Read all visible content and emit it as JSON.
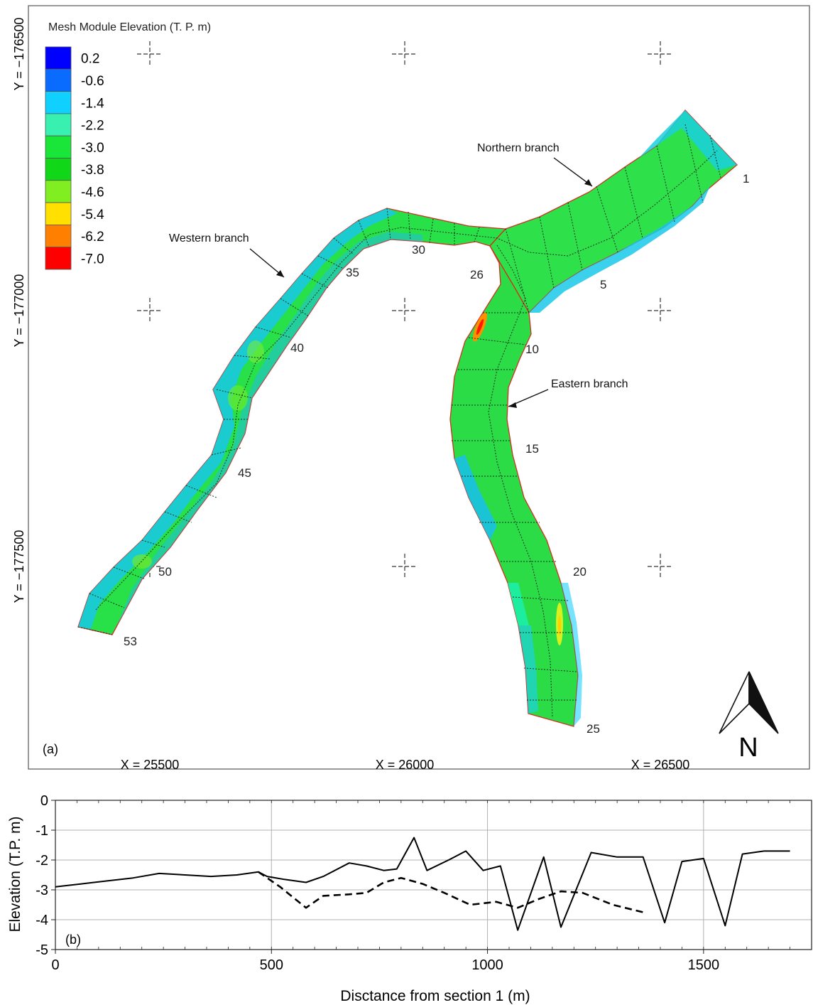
{
  "legend": {
    "title": "Mesh Module Elevation (T. P. m)",
    "items": [
      {
        "label": "0.2",
        "color": "#0000ff"
      },
      {
        "label": "-0.6",
        "color": "#0a6cff"
      },
      {
        "label": "-1.4",
        "color": "#10d0ff"
      },
      {
        "label": "-2.2",
        "color": "#38f0b0"
      },
      {
        "label": "-3.0",
        "color": "#19e639"
      },
      {
        "label": "-3.8",
        "color": "#10d818"
      },
      {
        "label": "-4.6",
        "color": "#80ee20"
      },
      {
        "label": "-5.4",
        "color": "#ffe000"
      },
      {
        "label": "-6.2",
        "color": "#ff8000"
      },
      {
        "label": "-7.0",
        "color": "#ff0000"
      }
    ]
  },
  "map": {
    "panel_label": "(a)",
    "y_ticks": [
      "Y =  −176500",
      "Y =  −177000",
      "Y =  −177500"
    ],
    "x_ticks": [
      "X =  25500",
      "X =  26000",
      "X =  26500"
    ],
    "branches": {
      "northern": "Northern branch",
      "western": "Western branch",
      "eastern": "Eastern branch"
    },
    "sections": [
      "1",
      "5",
      "10",
      "15",
      "20",
      "25",
      "26",
      "30",
      "35",
      "40",
      "45",
      "50",
      "53"
    ],
    "north": "N"
  },
  "chart_data": {
    "type": "line",
    "panel_label": "(b)",
    "title": "",
    "xlabel": "Disctance from section 1 (m)",
    "ylabel": "Elevation (T.P. m)",
    "xlim": [
      0,
      1750
    ],
    "ylim": [
      -5,
      0
    ],
    "xticks": [
      0,
      500,
      1000,
      1500
    ],
    "yticks": [
      0,
      -1,
      -2,
      -3,
      -4,
      -5
    ],
    "grid": true,
    "series": [
      {
        "style": "solid",
        "x": [
          0,
          60,
          120,
          180,
          240,
          300,
          360,
          420,
          470,
          490,
          530,
          580,
          620,
          680,
          720,
          760,
          790,
          830,
          860,
          910,
          950,
          990,
          1030,
          1070,
          1130,
          1170,
          1240,
          1300,
          1360,
          1410,
          1450,
          1500,
          1550,
          1590,
          1640,
          1700
        ],
        "y": [
          -2.9,
          -2.8,
          -2.7,
          -2.6,
          -2.45,
          -2.5,
          -2.55,
          -2.5,
          -2.4,
          -2.55,
          -2.65,
          -2.75,
          -2.55,
          -2.1,
          -2.2,
          -2.35,
          -2.3,
          -1.25,
          -2.35,
          -2.0,
          -1.7,
          -2.35,
          -2.2,
          -4.35,
          -1.9,
          -4.25,
          -1.75,
          -1.9,
          -1.9,
          -4.1,
          -2.05,
          -1.95,
          -4.2,
          -1.8,
          -1.7,
          -1.7
        ]
      },
      {
        "style": "dashed",
        "x": [
          470,
          520,
          580,
          620,
          680,
          720,
          760,
          800,
          850,
          900,
          960,
          1020,
          1070,
          1120,
          1170,
          1220,
          1290,
          1360
        ],
        "y": [
          -2.4,
          -2.9,
          -3.6,
          -3.2,
          -3.15,
          -3.1,
          -2.75,
          -2.6,
          -2.8,
          -3.1,
          -3.5,
          -3.4,
          -3.6,
          -3.3,
          -3.05,
          -3.1,
          -3.5,
          -3.75
        ]
      }
    ]
  }
}
